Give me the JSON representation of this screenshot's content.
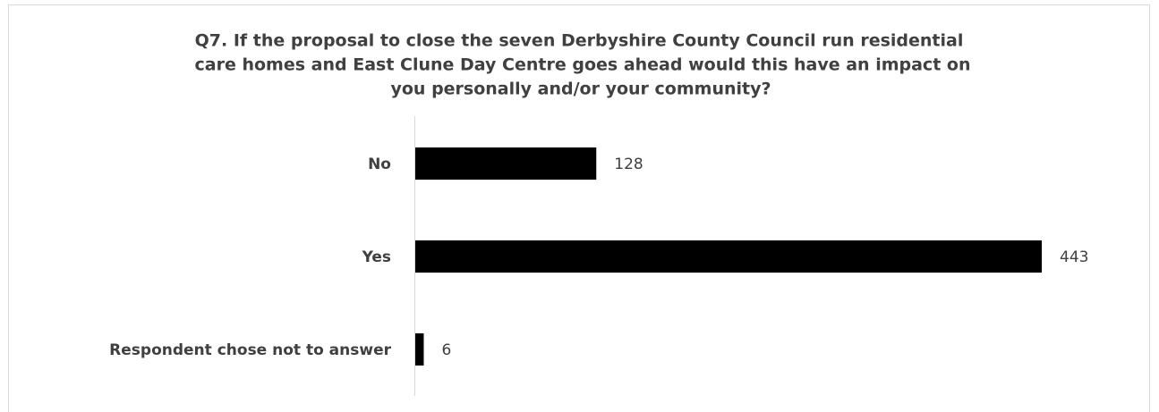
{
  "chart_data": {
    "type": "bar",
    "orientation": "horizontal",
    "title": [
      "Q7. If the proposal to close the seven Derbyshire County Council run residential",
      "care homes and East Clune Day Centre goes ahead would this have an impact on",
      "you personally and/or your community?"
    ],
    "categories": [
      "No",
      "Yes",
      "Respondent chose not to answer"
    ],
    "values": [
      128,
      443,
      6
    ],
    "color": "#000000"
  }
}
